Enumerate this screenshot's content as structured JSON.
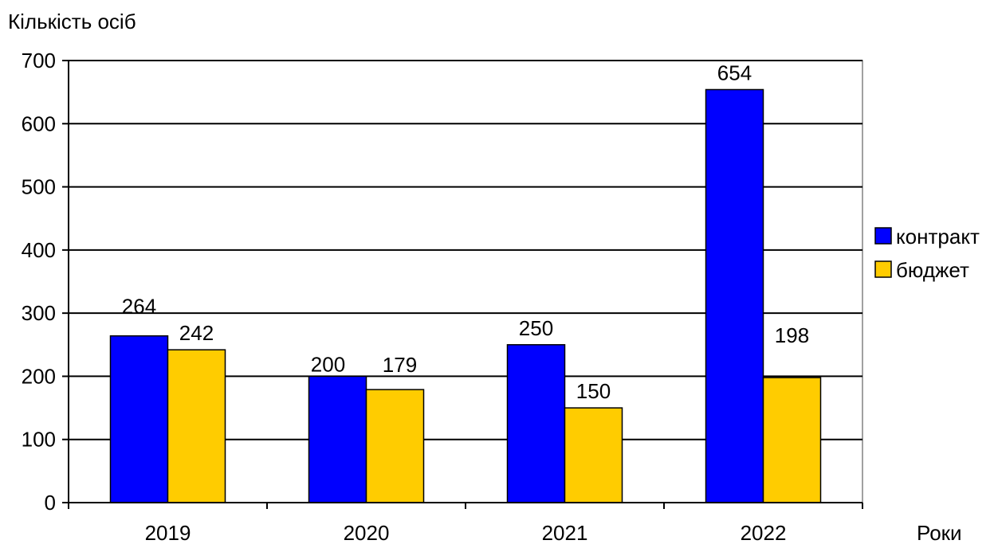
{
  "chart_data": {
    "type": "bar",
    "title": "",
    "ylabel": "Кількість осіб",
    "xlabel": "Роки",
    "categories": [
      "2019",
      "2020",
      "2021",
      "2022"
    ],
    "series": [
      {
        "name": "контракт",
        "values": [
          264,
          200,
          250,
          654
        ],
        "color": "#0000FF"
      },
      {
        "name": "бюджет",
        "values": [
          242,
          179,
          150,
          198
        ],
        "color": "#FFCC00"
      }
    ],
    "ylim": [
      0,
      700
    ],
    "yticks": [
      0,
      100,
      200,
      300,
      400,
      500,
      600,
      700
    ],
    "grid": true,
    "legend_position": "right"
  }
}
